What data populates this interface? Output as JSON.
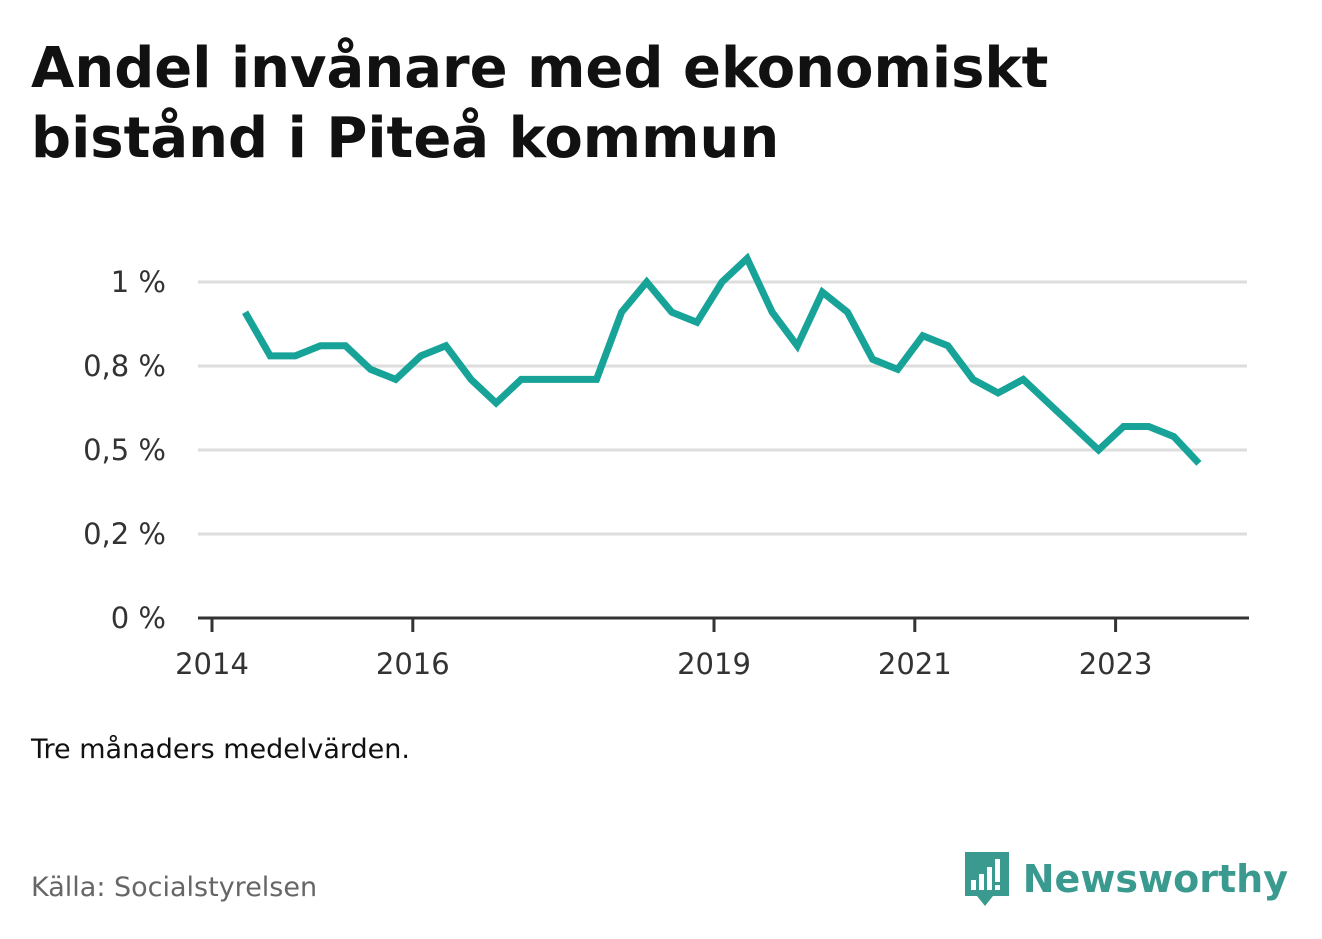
{
  "title": "Andel invånare med ekonomiskt bistånd i Piteå kommun",
  "note": "Tre månaders medelvärden.",
  "source": "Källa: Socialstyrelsen",
  "brand": {
    "name": "Newsworthy",
    "icon": "newsworthy-logo-icon",
    "color": "#3a9a8f"
  },
  "chart_data": {
    "type": "line",
    "x_axis": {
      "range": [
        2014,
        2024.35
      ],
      "ticks": [
        {
          "value": 2014,
          "label": "2014"
        },
        {
          "value": 2016,
          "label": "2016"
        },
        {
          "value": 2019,
          "label": "2019"
        },
        {
          "value": 2021,
          "label": "2021"
        },
        {
          "value": 2023,
          "label": "2023"
        }
      ]
    },
    "y_axis": {
      "range": [
        0,
        1.1
      ],
      "ticks": [
        {
          "value": 0,
          "label": "0 %"
        },
        {
          "value": 0.25,
          "label": "0,2 %"
        },
        {
          "value": 0.5,
          "label": "0,5 %"
        },
        {
          "value": 0.75,
          "label": "0,8 %"
        },
        {
          "value": 1.0,
          "label": "1 %"
        }
      ]
    },
    "grid": true,
    "series": [
      {
        "color": "#17a398",
        "x": [
          2014.33,
          2014.58,
          2014.83,
          2015.08,
          2015.33,
          2015.58,
          2015.83,
          2016.08,
          2016.33,
          2016.58,
          2016.83,
          2017.08,
          2017.33,
          2017.58,
          2017.83,
          2018.08,
          2018.33,
          2018.58,
          2018.83,
          2019.08,
          2019.33,
          2019.58,
          2019.83,
          2020.08,
          2020.33,
          2020.58,
          2020.83,
          2021.08,
          2021.33,
          2021.58,
          2021.83,
          2022.08,
          2022.33,
          2022.58,
          2022.83,
          2023.08,
          2023.33,
          2023.58,
          2023.83
        ],
        "y": [
          0.91,
          0.78,
          0.78,
          0.81,
          0.81,
          0.74,
          0.71,
          0.78,
          0.81,
          0.71,
          0.64,
          0.71,
          0.71,
          0.71,
          0.71,
          0.91,
          1.0,
          0.91,
          0.88,
          1.0,
          1.07,
          0.91,
          0.81,
          0.97,
          0.91,
          0.77,
          0.74,
          0.84,
          0.81,
          0.71,
          0.67,
          0.71,
          0.64,
          0.57,
          0.5,
          0.57,
          0.57,
          0.54,
          0.46
        ]
      }
    ]
  }
}
